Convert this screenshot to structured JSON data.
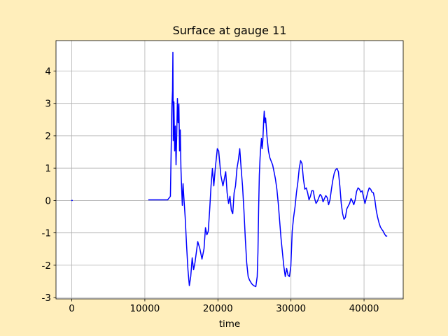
{
  "chart_data": {
    "type": "line",
    "title": "Surface at gauge 11",
    "x_label": "time",
    "xlim": [
      -2160,
      45360
    ],
    "ylim": [
      -3.04,
      4.94
    ],
    "xticks": [
      0,
      10000,
      20000,
      30000,
      40000
    ],
    "yticks": [
      -3,
      -2,
      -1,
      0,
      1,
      2,
      3,
      4
    ],
    "grid": true,
    "series": [
      {
        "color": "#0000ff",
        "x": [
          0,
          null,
          10540,
          13120,
          13500,
          13700,
          13790,
          13840,
          13890,
          13980,
          14080,
          14180,
          14270,
          14370,
          14460,
          14560,
          14660,
          14750,
          14850,
          14940,
          15040,
          15130,
          15230,
          15330,
          15520,
          15710,
          15900,
          16090,
          16280,
          16480,
          16670,
          16860,
          17050,
          17240,
          17530,
          17820,
          18100,
          18300,
          18490,
          18680,
          18870,
          19060,
          19250,
          19440,
          19640,
          19920,
          20110,
          20400,
          20690,
          20880,
          21070,
          21260,
          21460,
          21650,
          21840,
          22030,
          22220,
          22410,
          22610,
          22800,
          22990,
          23180,
          23370,
          23560,
          23750,
          23940,
          24140,
          24330,
          24620,
          24900,
          25190,
          25380,
          25480,
          25570,
          25670,
          25770,
          25860,
          25960,
          26050,
          26150,
          26250,
          26340,
          26440,
          26530,
          26720,
          26920,
          27110,
          27300,
          27490,
          27680,
          27870,
          28070,
          28260,
          28450,
          28640,
          28830,
          29020,
          29220,
          29410,
          29600,
          29790,
          29980,
          30170,
          30360,
          30560,
          30750,
          30940,
          31130,
          31320,
          31510,
          31700,
          31900,
          32090,
          32280,
          32470,
          32660,
          32850,
          33050,
          33240,
          33430,
          33620,
          33810,
          34000,
          34200,
          34390,
          34580,
          34770,
          34960,
          35150,
          35340,
          35540,
          35730,
          35920,
          36110,
          36300,
          36490,
          36690,
          36880,
          37070,
          37260,
          37450,
          37640,
          37840,
          38030,
          38220,
          38410,
          38600,
          38790,
          38980,
          39180,
          39370,
          39560,
          39750,
          39940,
          40130,
          40330,
          40520,
          40710,
          40900,
          41090,
          41280,
          41480,
          41670,
          41860,
          42050,
          42240,
          42430,
          42620,
          42820,
          43010,
          43100
        ],
        "values": [
          0,
          null,
          0.02,
          0.02,
          0.13,
          2.9,
          3.4,
          4.58,
          1.85,
          3.05,
          1.53,
          2.3,
          1.1,
          2.07,
          3.15,
          2.4,
          2.98,
          1.53,
          2.18,
          1.0,
          0.35,
          -0.15,
          0.52,
          0.13,
          -0.52,
          -1.38,
          -2.14,
          -2.63,
          -2.35,
          -1.77,
          -2.14,
          -1.92,
          -1.6,
          -1.27,
          -1.49,
          -1.81,
          -1.49,
          -0.84,
          -1.06,
          -0.95,
          -0.3,
          0.45,
          0.99,
          0.45,
          0.99,
          1.6,
          1.53,
          0.78,
          0.45,
          0.67,
          0.89,
          0.24,
          -0.09,
          0.13,
          -0.3,
          -0.41,
          0.24,
          0.45,
          0.99,
          1.25,
          1.6,
          0.99,
          0.45,
          -0.3,
          -1.17,
          -1.92,
          -2.35,
          -2.46,
          -2.57,
          -2.63,
          -2.66,
          -2.35,
          -1.6,
          -0.3,
          0.78,
          1.32,
          1.64,
          1.92,
          1.6,
          1.86,
          2.4,
          2.76,
          2.4,
          2.55,
          1.97,
          1.53,
          1.32,
          1.21,
          1.1,
          0.89,
          0.67,
          0.35,
          -0.09,
          -0.63,
          -1.17,
          -1.6,
          -2.03,
          -2.35,
          -2.1,
          -2.31,
          -2.35,
          -2.03,
          -0.95,
          -0.52,
          -0.19,
          0.24,
          0.56,
          0.99,
          1.23,
          1.14,
          0.67,
          0.35,
          0.39,
          0.24,
          0.02,
          0.13,
          0.3,
          0.3,
          0.06,
          -0.09,
          -0.02,
          0.09,
          0.19,
          0.13,
          -0.04,
          0.06,
          0.15,
          0.09,
          -0.13,
          0.02,
          0.35,
          0.63,
          0.84,
          0.95,
          0.99,
          0.89,
          0.45,
          -0.09,
          -0.41,
          -0.58,
          -0.52,
          -0.26,
          -0.17,
          -0.09,
          0.06,
          -0.02,
          -0.13,
          0.02,
          0.28,
          0.39,
          0.35,
          0.26,
          0.3,
          0.09,
          -0.09,
          0.09,
          0.26,
          0.39,
          0.35,
          0.26,
          0.24,
          0.02,
          -0.3,
          -0.52,
          -0.69,
          -0.82,
          -0.89,
          -0.95,
          -1.04,
          -1.1,
          -1.1
        ]
      }
    ]
  }
}
